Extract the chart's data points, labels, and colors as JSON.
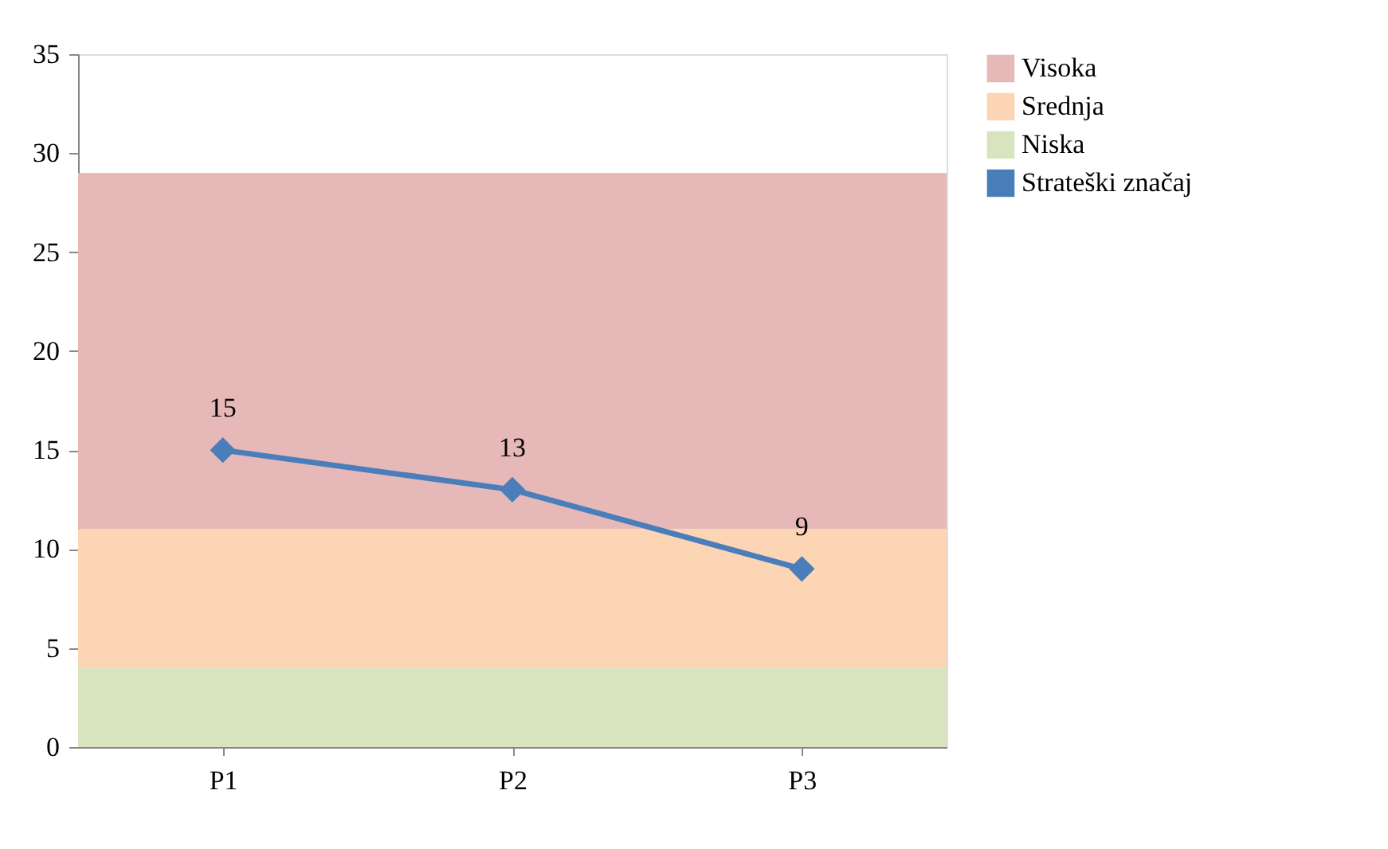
{
  "chart_data": {
    "type": "line",
    "categories": [
      "P1",
      "P2",
      "P3"
    ],
    "series": [
      {
        "name": "Strateški značaj",
        "color": "#4a7ebb",
        "values": [
          15,
          13,
          9
        ]
      }
    ],
    "bands": [
      {
        "axis": "y",
        "from": 11,
        "to": 29,
        "label": "Visoka",
        "color": "#e6b9b8"
      },
      {
        "axis": "y",
        "from": 4,
        "to": 11,
        "label": "Srednja",
        "color": "#fcd5b5"
      },
      {
        "axis": "y",
        "from": 0,
        "to": 4,
        "label": "Niska",
        "color": "#d7e4bd"
      }
    ],
    "ylim": [
      0,
      35
    ],
    "yticks": [
      0,
      5,
      10,
      15,
      20,
      25,
      30,
      35
    ],
    "grid": false,
    "legend": "right",
    "marker": "diamond",
    "line_style": "solid",
    "data_labels": true
  }
}
